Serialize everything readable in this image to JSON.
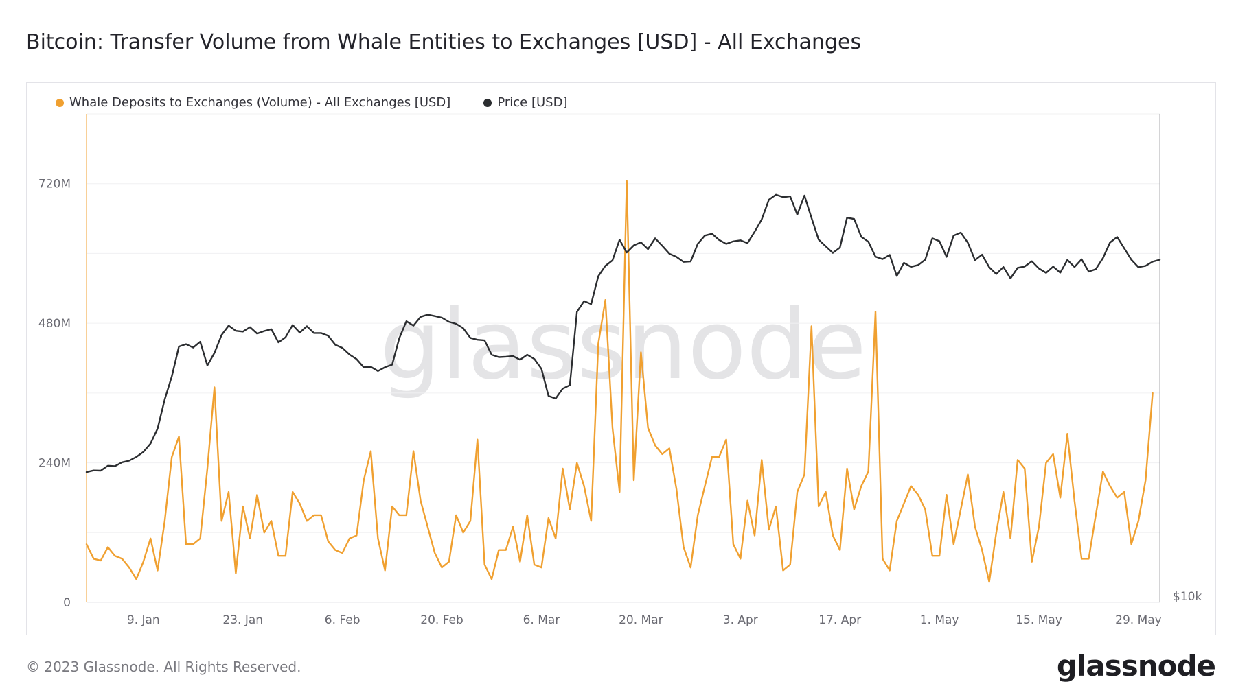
{
  "title": "Bitcoin: Transfer Volume from Whale Entities to Exchanges [USD] - All Exchanges",
  "footer": "© 2023 Glassnode. All Rights Reserved.",
  "logo": "glassnode",
  "watermark": "glassnode",
  "colors": {
    "volume": "#f0a030",
    "price": "#2b2d30"
  },
  "chart_data": {
    "type": "line",
    "title": "Bitcoin: Transfer Volume from Whale Entities to Exchanges [USD] - All Exchanges",
    "x_tick_labels": [
      "9. Jan",
      "23. Jan",
      "6. Feb",
      "20. Feb",
      "6. Mar",
      "20. Mar",
      "3. Apr",
      "17. Apr",
      "1. May",
      "15. May",
      "29. May"
    ],
    "x_range": [
      "2023-01-01",
      "2023-06-01"
    ],
    "y_left": {
      "ticks": [
        "0",
        "240M",
        "480M",
        "720M"
      ],
      "range": [
        0,
        840000000
      ]
    },
    "y_right": {
      "ticks": [
        "$10k"
      ],
      "visible_tick_value": 10000
    },
    "grid": true,
    "legend_placement": "top-left",
    "series": [
      {
        "name": "Whale Deposits to Exchanges (Volume) - All Exchanges [USD]",
        "axis": "left",
        "unit": "USD",
        "x_start": "2023-01-01",
        "x_step_days": 1,
        "values": [
          100,
          75,
          72,
          95,
          80,
          75,
          60,
          40,
          70,
          110,
          55,
          140,
          250,
          285,
          100,
          100,
          110,
          230,
          370,
          140,
          190,
          50,
          165,
          110,
          185,
          120,
          140,
          80,
          80,
          190,
          170,
          140,
          150,
          150,
          105,
          90,
          85,
          110,
          115,
          210,
          260,
          110,
          55,
          165,
          150,
          150,
          260,
          175,
          130,
          85,
          60,
          70,
          150,
          120,
          140,
          280,
          65,
          40,
          90,
          90,
          130,
          70,
          150,
          65,
          60,
          145,
          110,
          230,
          160,
          240,
          200,
          140,
          445,
          520,
          300,
          190,
          725,
          210,
          430,
          300,
          270,
          255,
          265,
          195,
          95,
          60,
          150,
          200,
          250,
          250,
          280,
          100,
          75,
          175,
          115,
          245,
          125,
          165,
          55,
          65,
          190,
          220,
          475,
          165,
          190,
          115,
          90,
          230,
          160,
          200,
          225,
          500,
          75,
          55,
          140,
          170,
          200,
          185,
          160,
          80,
          80,
          185,
          100,
          160,
          220,
          130,
          90,
          35,
          120,
          190,
          110,
          245,
          230,
          70,
          130,
          240,
          255,
          180,
          290,
          175,
          75,
          75,
          150,
          225,
          200,
          180,
          190,
          100,
          140,
          210,
          360
        ]
      },
      {
        "name": "Price [USD]",
        "axis": "right",
        "unit": "USD",
        "x_start": "2023-01-01",
        "x_step_days": 1,
        "values": [
          16540,
          16620,
          16610,
          16860,
          16840,
          17030,
          17110,
          17300,
          17550,
          17970,
          18720,
          20190,
          21340,
          22840,
          22960,
          22790,
          23080,
          21890,
          22520,
          23420,
          23890,
          23630,
          23590,
          23810,
          23490,
          23620,
          23710,
          23050,
          23300,
          23920,
          23540,
          23860,
          23520,
          23520,
          23380,
          22930,
          22770,
          22440,
          22210,
          21800,
          21820,
          21610,
          21800,
          21930,
          23250,
          24110,
          23890,
          24330,
          24440,
          24370,
          24290,
          24080,
          23980,
          23760,
          23270,
          23180,
          23150,
          22430,
          22310,
          22330,
          22360,
          22180,
          22430,
          22220,
          21720,
          20360,
          20230,
          20730,
          20900,
          24580,
          25120,
          24970,
          26370,
          26890,
          27170,
          28200,
          27560,
          27920,
          28070,
          27730,
          28270,
          27900,
          27500,
          27340,
          27090,
          27110,
          28000,
          28410,
          28500,
          28190,
          27990,
          28120,
          28170,
          28030,
          28600,
          29220,
          30210,
          30460,
          30340,
          30380,
          29460,
          30420,
          29300,
          28210,
          27870,
          27540,
          27810,
          29310,
          29240,
          28350,
          28100,
          27350,
          27230,
          27440,
          26380,
          27040,
          26840,
          26930,
          27200,
          28270,
          28130,
          27340,
          28410,
          28560,
          28050,
          27180,
          27450,
          26820,
          26480,
          26830,
          26260,
          26790,
          26860,
          27120,
          26760,
          26540,
          26850,
          26550,
          27190,
          26830,
          27220,
          26600,
          26720,
          27280,
          28060,
          28340,
          27770,
          27200,
          26820,
          26890,
          27100,
          27200
        ]
      }
    ]
  }
}
